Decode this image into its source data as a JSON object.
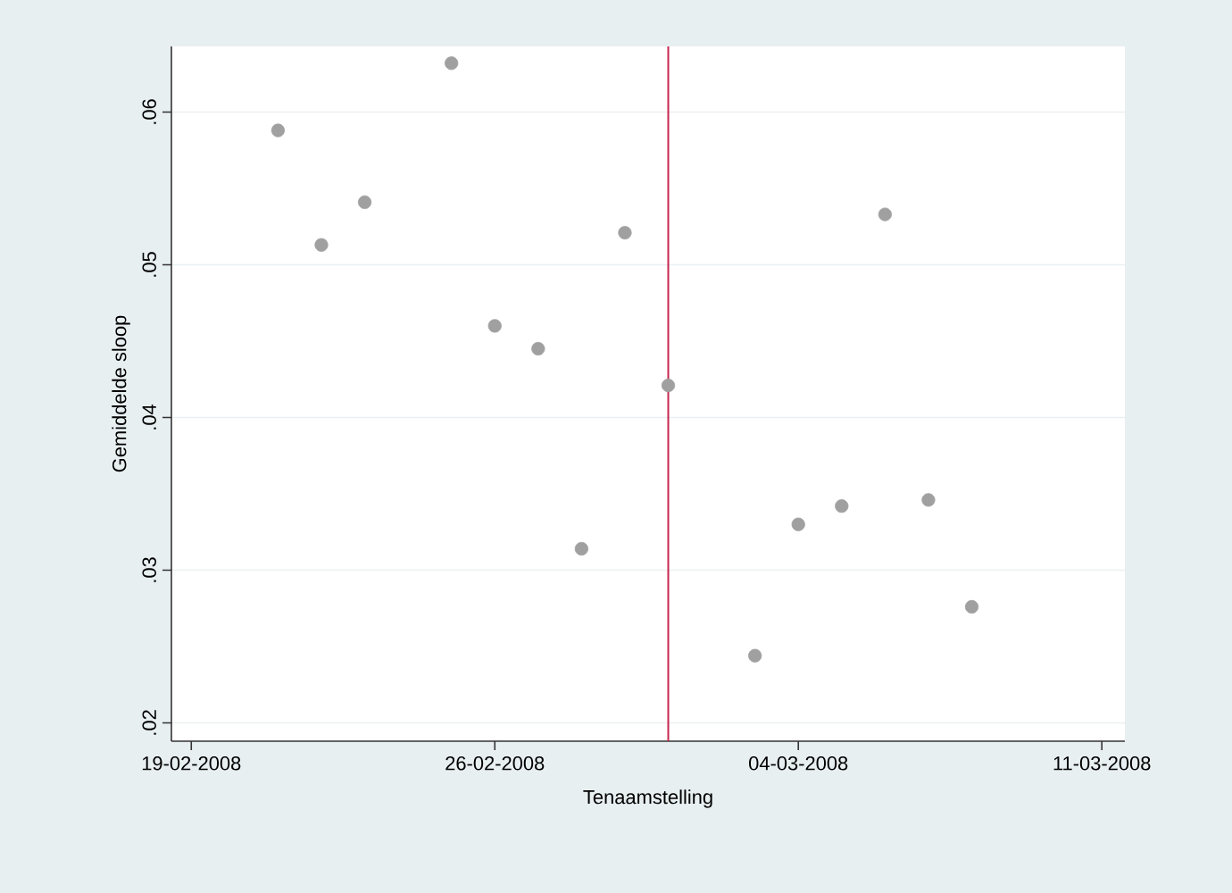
{
  "chart_data": {
    "type": "scatter",
    "xlabel": "Tenaamstelling",
    "ylabel": "Gemiddelde sloop",
    "x": [
      "2008-02-21",
      "2008-02-22",
      "2008-02-23",
      "2008-02-25",
      "2008-02-26",
      "2008-02-27",
      "2008-02-28",
      "2008-02-29",
      "2008-03-01",
      "2008-03-03",
      "2008-03-04",
      "2008-03-05",
      "2008-03-06",
      "2008-03-07",
      "2008-03-08"
    ],
    "series": [
      {
        "color": "#a0a0a0",
        "values": [
          0.0588,
          0.0513,
          0.0541,
          0.0632,
          0.046,
          0.0445,
          0.0314,
          0.0521,
          0.0421,
          0.0244,
          0.033,
          0.0342,
          0.0533,
          0.0346,
          0.0276
        ]
      }
    ],
    "marker": "circle",
    "xlim": [
      "2008-02-18T13:00",
      "2008-03-11T12:45"
    ],
    "xticks": [
      {
        "value": "2008-02-19",
        "label": "19-02-2008"
      },
      {
        "value": "2008-02-26",
        "label": "26-02-2008"
      },
      {
        "value": "2008-03-04",
        "label": "04-03-2008"
      },
      {
        "value": "2008-03-11",
        "label": "11-03-2008"
      }
    ],
    "ylim": [
      0.0188,
      0.0643
    ],
    "yticks": [
      {
        "value": 0.02,
        "label": ".02"
      },
      {
        "value": 0.03,
        "label": ".03"
      },
      {
        "value": 0.04,
        "label": ".04"
      },
      {
        "value": 0.05,
        "label": ".05"
      },
      {
        "value": 0.06,
        "label": ".06"
      }
    ],
    "grid": "y",
    "ref_lines": [
      {
        "axis": "x",
        "value": "2008-03-01",
        "color": "#c8254f"
      }
    ]
  }
}
